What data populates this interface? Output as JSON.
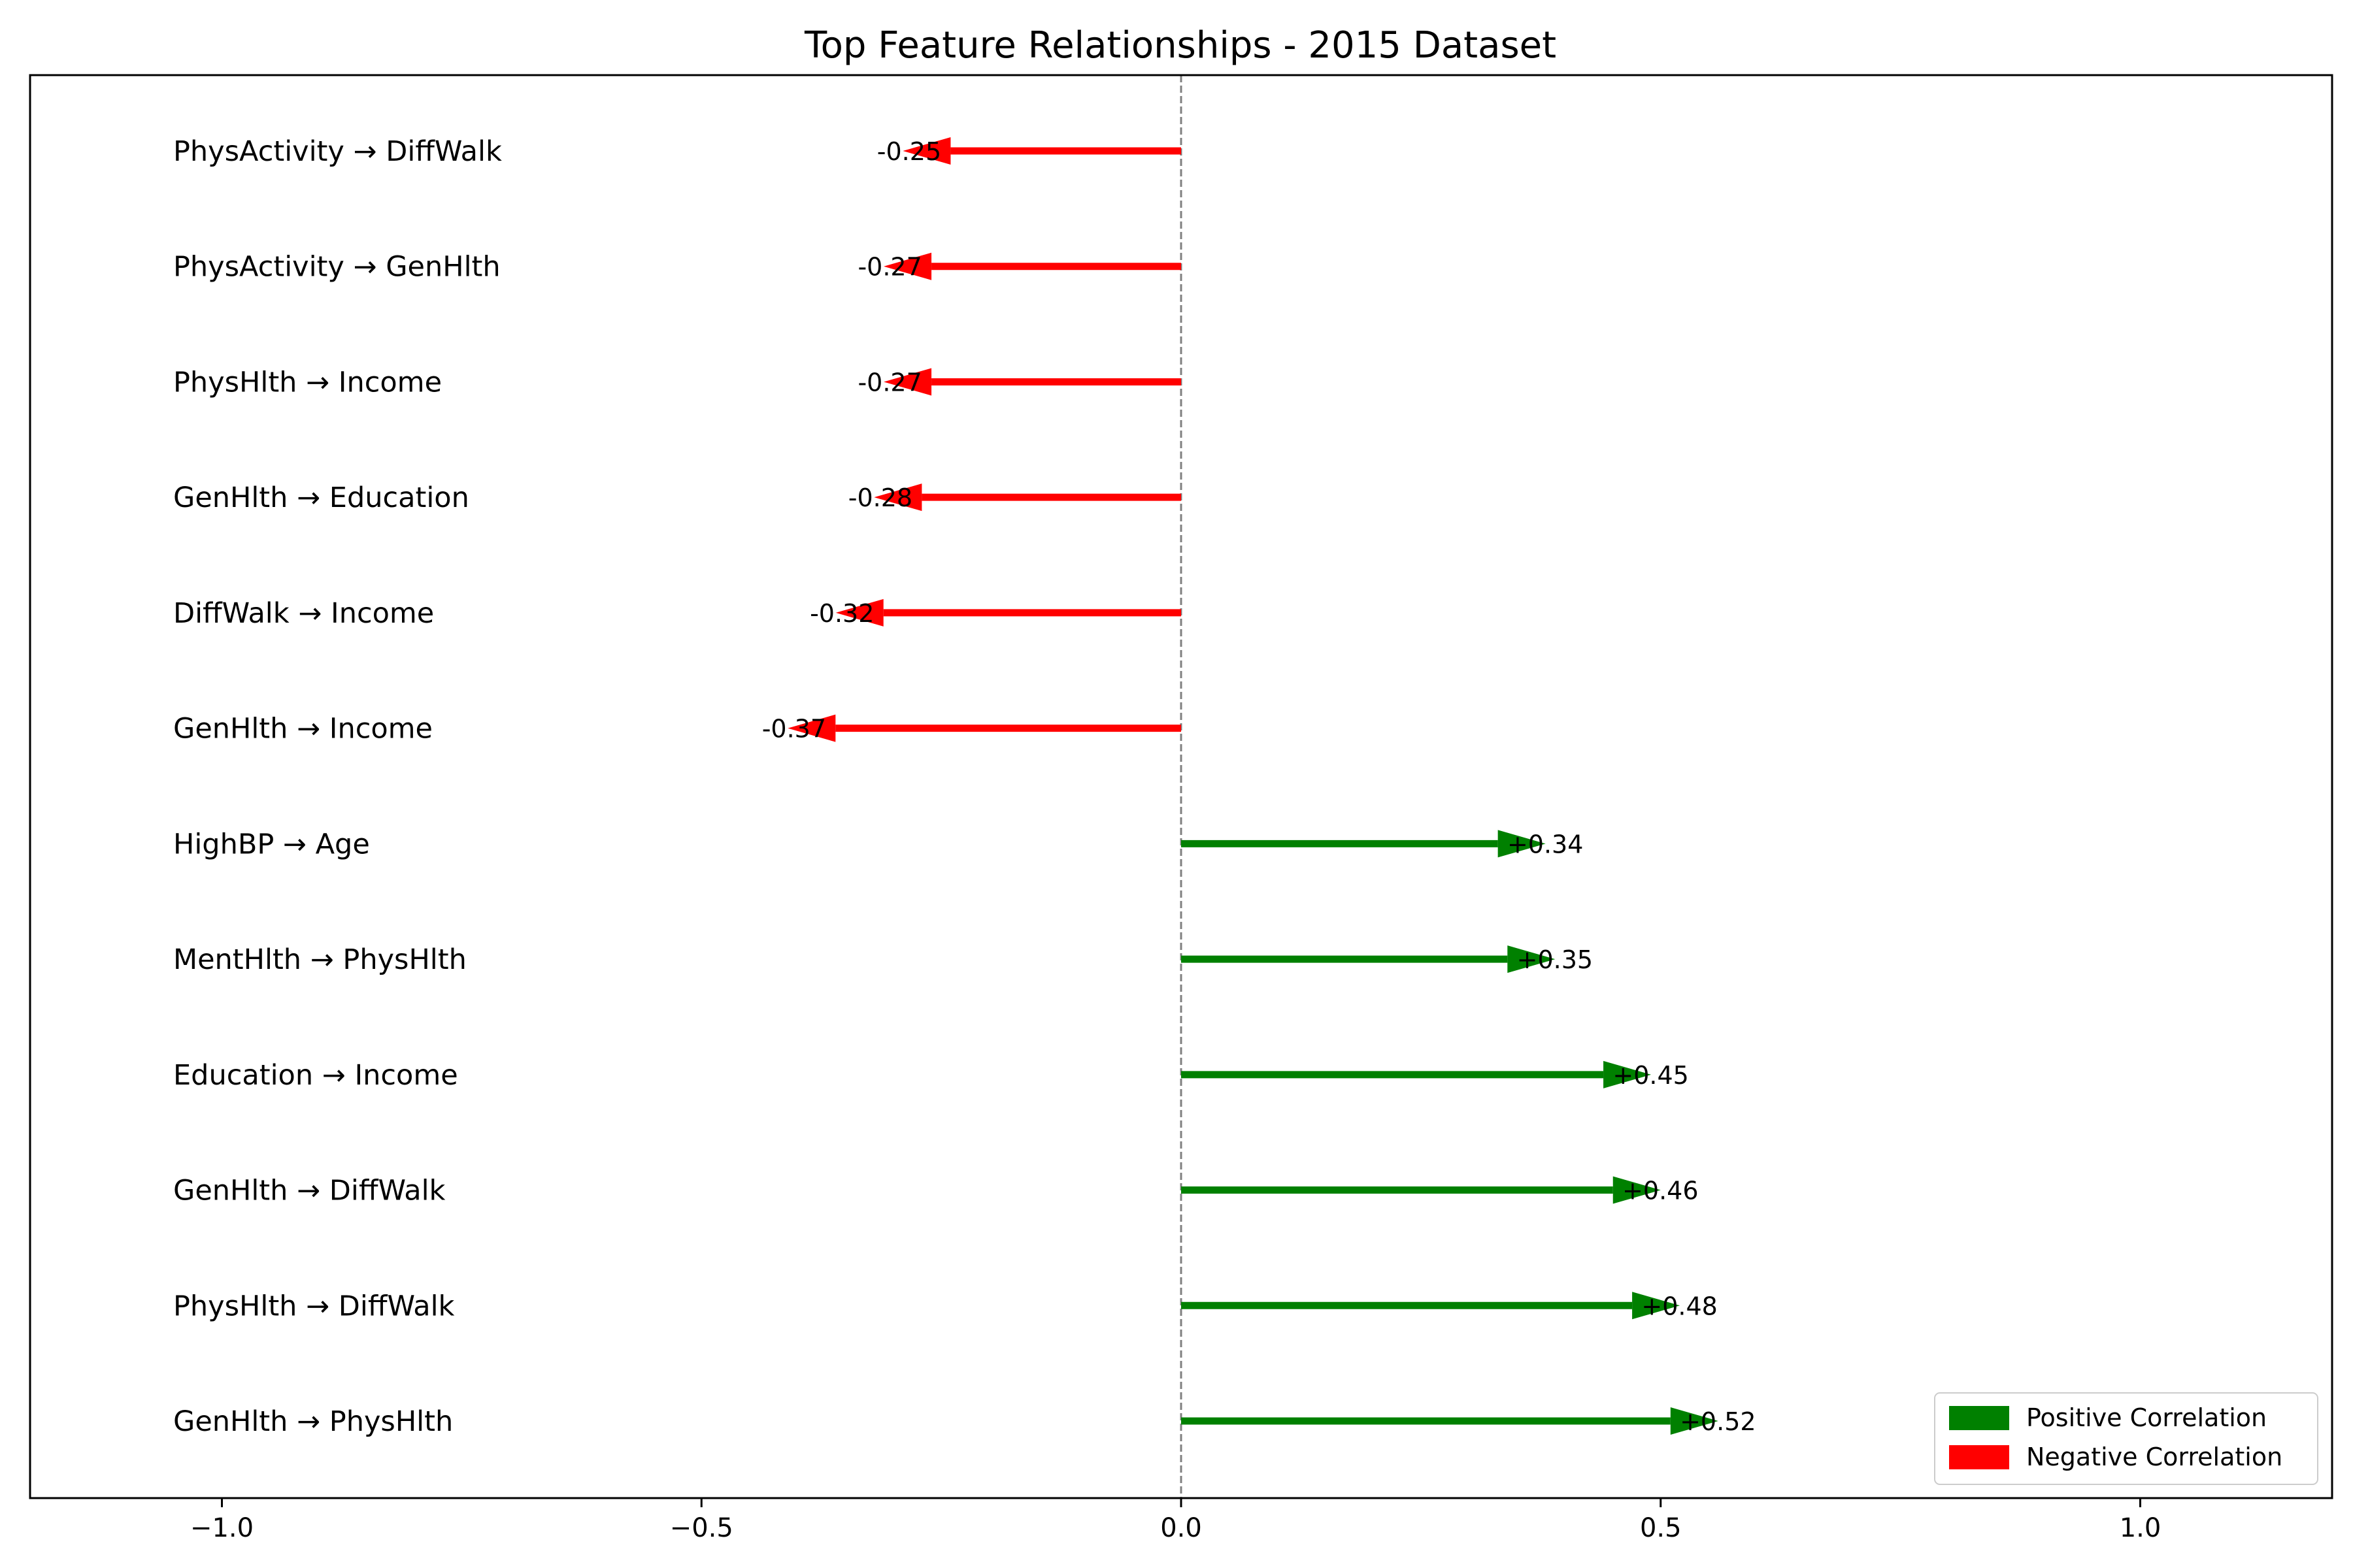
{
  "chart_data": {
    "type": "bar",
    "title": "Top Feature Relationships - 2015 Dataset",
    "xlabel": "",
    "ylabel": "",
    "xlim": [
      -1.2,
      1.2
    ],
    "xticks": [
      {
        "value": -1.0,
        "label": "−1.0"
      },
      {
        "value": -0.5,
        "label": "−0.5"
      },
      {
        "value": 0.0,
        "label": "0.0"
      },
      {
        "value": 0.5,
        "label": "0.5"
      },
      {
        "value": 1.0,
        "label": "1.0"
      }
    ],
    "grid": false,
    "zero_line": true,
    "legend_position": "bottom-right",
    "legend": [
      {
        "label": "Positive Correlation",
        "color": "#008000"
      },
      {
        "label": "Negative Correlation",
        "color": "#ff0000"
      }
    ],
    "colors": {
      "positive": "#008000",
      "negative": "#ff0000"
    },
    "relationships": [
      {
        "pair": "PhysActivity → DiffWalk",
        "value": -0.25,
        "label": "-0.25"
      },
      {
        "pair": "PhysActivity → GenHlth",
        "value": -0.27,
        "label": "-0.27"
      },
      {
        "pair": "PhysHlth → Income",
        "value": -0.27,
        "label": "-0.27"
      },
      {
        "pair": "GenHlth → Education",
        "value": -0.28,
        "label": "-0.28"
      },
      {
        "pair": "DiffWalk → Income",
        "value": -0.32,
        "label": "-0.32"
      },
      {
        "pair": "GenHlth → Income",
        "value": -0.37,
        "label": "-0.37"
      },
      {
        "pair": "HighBP → Age",
        "value": 0.34,
        "label": "+0.34"
      },
      {
        "pair": "MentHlth → PhysHlth",
        "value": 0.35,
        "label": "+0.35"
      },
      {
        "pair": "Education → Income",
        "value": 0.45,
        "label": "+0.45"
      },
      {
        "pair": "GenHlth → DiffWalk",
        "value": 0.46,
        "label": "+0.46"
      },
      {
        "pair": "PhysHlth → DiffWalk",
        "value": 0.48,
        "label": "+0.48"
      },
      {
        "pair": "GenHlth → PhysHlth",
        "value": 0.52,
        "label": "+0.52"
      }
    ]
  }
}
